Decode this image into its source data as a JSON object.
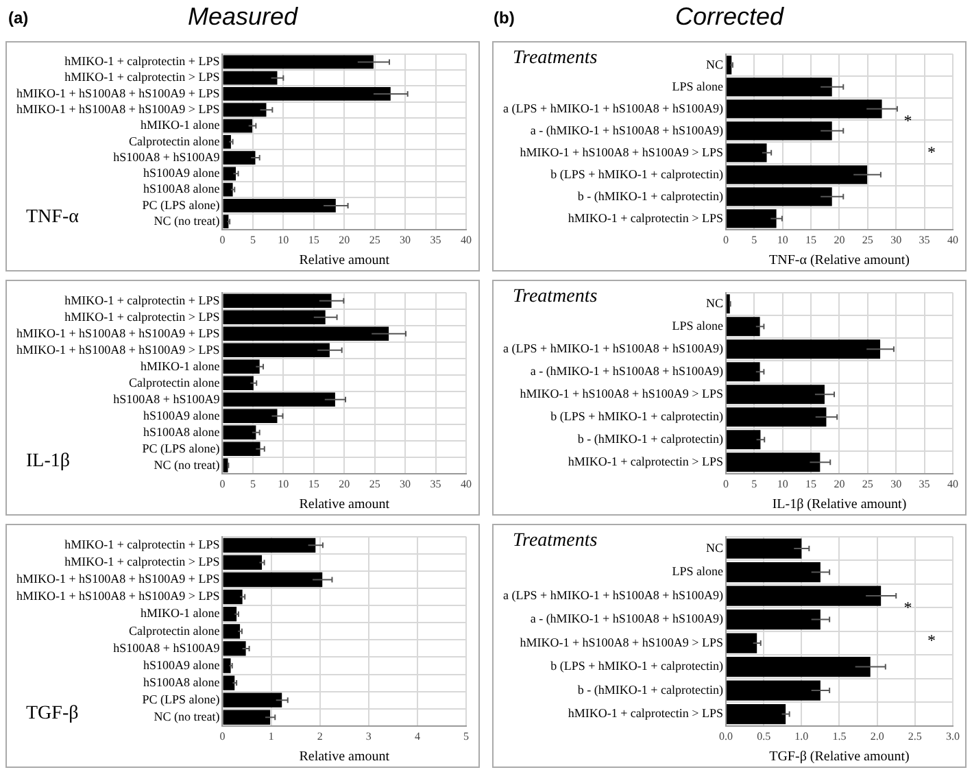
{
  "chart_data": [
    {
      "type": "bar",
      "orientation": "horizontal",
      "title": "Measured",
      "subtitle": "(a)",
      "xlabel": "Relative amount",
      "annotations": [
        "TNF-α"
      ],
      "grid": true,
      "legend": false,
      "xlim": [
        0,
        40
      ],
      "xticks": [
        0,
        5,
        10,
        15,
        20,
        25,
        30,
        35,
        40
      ],
      "categories": [
        "hMIKO-1 + calprotectin + LPS",
        "hMIKO-1 + calprotectin > LPS",
        "hMIKO-1 + hS100A8 + hS100A9 + LPS",
        "hMIKO-1 + hS100A8 + hS100A9 > LPS",
        "hMIKO-1 alone",
        "Calprotectin alone",
        "hS100A8 + hS100A9",
        "hS100A9 alone",
        "hS100A8 alone",
        "PC (LPS alone)",
        "NC (no treat)"
      ],
      "series": [
        {
          "color": "#000000",
          "values": [
            24.8,
            9.0,
            27.6,
            7.2,
            4.9,
            1.4,
            5.4,
            2.2,
            1.7,
            18.6,
            1.0
          ],
          "errors": [
            2.6,
            1.0,
            2.8,
            1.0,
            0.6,
            0.3,
            0.7,
            0.4,
            0.3,
            2.0,
            0.2
          ]
        }
      ]
    },
    {
      "type": "bar",
      "orientation": "horizontal",
      "title": "Corrected",
      "subtitle": "(b)",
      "xlabel": "TNF-α (Relative amount)",
      "annotations": [
        "Treatments",
        "*",
        "*"
      ],
      "grid": true,
      "legend": false,
      "xlim": [
        0,
        40
      ],
      "xticks": [
        0,
        5,
        10,
        15,
        20,
        25,
        30,
        35,
        40
      ],
      "categories": [
        "NC",
        "LPS alone",
        "a (LPS + hMIKO-1 + hS100A8 + hS100A9)",
        "a - (hMIKO-1 + hS100A8 + hS100A9)",
        "hMIKO-1 + hS100A8 + hS100A9 > LPS",
        "b (LPS + hMIKO-1 + calprotectin)",
        "b - (hMIKO-1 + calprotectin)",
        "hMIKO-1 + calprotectin > LPS"
      ],
      "series": [
        {
          "color": "#000000",
          "values": [
            1.0,
            18.7,
            27.5,
            18.7,
            7.2,
            24.9,
            18.7,
            8.9
          ],
          "errors": [
            0.2,
            2.0,
            2.7,
            2.0,
            0.8,
            2.4,
            2.0,
            1.0
          ]
        }
      ]
    },
    {
      "type": "bar",
      "orientation": "horizontal",
      "xlabel": "Relative amount",
      "annotations": [
        "IL-1β"
      ],
      "grid": true,
      "legend": false,
      "xlim": [
        0,
        40
      ],
      "xticks": [
        0,
        5,
        10,
        15,
        20,
        25,
        30,
        35,
        40
      ],
      "categories": [
        "hMIKO-1 + calprotectin + LPS",
        "hMIKO-1 + calprotectin > LPS",
        "hMIKO-1 + hS100A8 + hS100A9 + LPS",
        "hMIKO-1 + hS100A8 + hS100A9 > LPS",
        "hMIKO-1 alone",
        "Calprotectin alone",
        "hS100A8 + hS100A9",
        "hS100A9 alone",
        "hS100A8 alone",
        "PC (LPS alone)",
        "NC (no treat)"
      ],
      "series": [
        {
          "color": "#000000",
          "values": [
            17.9,
            16.9,
            27.3,
            17.6,
            6.1,
            5.1,
            18.5,
            9.0,
            5.5,
            6.2,
            0.9
          ],
          "errors": [
            2.0,
            1.9,
            2.8,
            2.0,
            0.6,
            0.5,
            1.7,
            0.9,
            0.6,
            0.7,
            0.1
          ]
        }
      ]
    },
    {
      "type": "bar",
      "orientation": "horizontal",
      "xlabel": "IL-1β (Relative amount)",
      "annotations": [
        "Treatments"
      ],
      "grid": true,
      "legend": false,
      "xlim": [
        0,
        40
      ],
      "xticks": [
        0,
        5,
        10,
        15,
        20,
        25,
        30,
        35,
        40
      ],
      "categories": [
        "NC",
        "LPS alone",
        "a (LPS + hMIKO-1 + hS100A8 + hS100A9)",
        "a - (hMIKO-1 + hS100A8 + hS100A9)",
        "hMIKO-1 + hS100A8 + hS100A9 > LPS",
        "b (LPS + hMIKO-1 + calprotectin)",
        "b - (hMIKO-1 + calprotectin)",
        "hMIKO-1 + calprotectin > LPS"
      ],
      "series": [
        {
          "color": "#000000",
          "values": [
            0.7,
            6.0,
            27.2,
            6.0,
            17.4,
            17.7,
            6.1,
            16.6
          ],
          "errors": [
            0.1,
            0.7,
            2.4,
            0.7,
            1.7,
            1.9,
            0.7,
            1.8
          ]
        }
      ]
    },
    {
      "type": "bar",
      "orientation": "horizontal",
      "xlabel": "Relative amount",
      "annotations": [
        "TGF-β"
      ],
      "grid": true,
      "legend": false,
      "xlim": [
        0,
        5
      ],
      "xticks": [
        0,
        1,
        2,
        3,
        4,
        5
      ],
      "categories": [
        "hMIKO-1 + calprotectin + LPS",
        "hMIKO-1 + calprotectin > LPS",
        "hMIKO-1 + hS100A8 + hS100A9 + LPS",
        "hMIKO-1 + hS100A8 + hS100A9 > LPS",
        "hMIKO-1 alone",
        "Calprotectin alone",
        "hS100A8 + hS100A9",
        "hS100A9 alone",
        "hS100A8 alone",
        "PC (LPS alone)",
        "NC (no treat)"
      ],
      "series": [
        {
          "color": "#000000",
          "values": [
            1.91,
            0.81,
            2.05,
            0.41,
            0.29,
            0.36,
            0.48,
            0.17,
            0.25,
            1.22,
            0.98
          ],
          "errors": [
            0.15,
            0.05,
            0.2,
            0.05,
            0.04,
            0.04,
            0.07,
            0.03,
            0.04,
            0.12,
            0.1
          ]
        }
      ]
    },
    {
      "type": "bar",
      "orientation": "horizontal",
      "xlabel": "TGF-β (Relative amount)",
      "annotations": [
        "Treatments",
        "*",
        "*"
      ],
      "grid": true,
      "legend": false,
      "xlim": [
        0,
        3
      ],
      "xticks": [
        {
          "value": 0,
          "label": "0.0"
        },
        {
          "value": 0.5,
          "label": "0.5"
        },
        {
          "value": 1,
          "label": "1.0"
        },
        {
          "value": 1.5,
          "label": "1.5"
        },
        {
          "value": 2,
          "label": "2.0"
        },
        {
          "value": 2.5,
          "label": "2.5"
        },
        {
          "value": 3,
          "label": "3.0"
        }
      ],
      "categories": [
        "NC",
        "LPS alone",
        "a (LPS + hMIKO-1 + hS100A8 + hS100A9)",
        "a - (hMIKO-1 + hS100A8 + hS100A9)",
        "hMIKO-1 + hS100A8 + hS100A9 > LPS",
        "b (LPS + hMIKO-1 + calprotectin)",
        "b - (hMIKO-1 + calprotectin)",
        "hMIKO-1 + calprotectin > LPS"
      ],
      "series": [
        {
          "color": "#000000",
          "values": [
            1.0,
            1.25,
            2.05,
            1.25,
            0.41,
            1.91,
            1.25,
            0.79
          ],
          "errors": [
            0.1,
            0.12,
            0.2,
            0.12,
            0.05,
            0.2,
            0.12,
            0.05
          ]
        }
      ]
    }
  ]
}
